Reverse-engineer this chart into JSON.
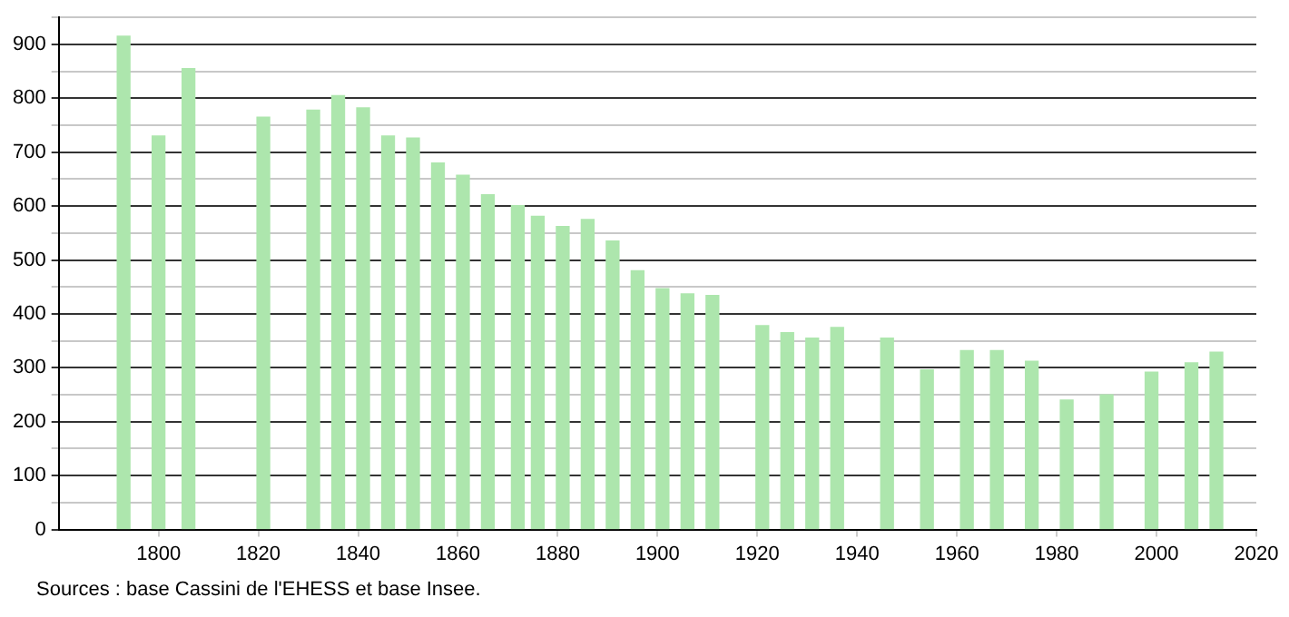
{
  "chart_data": {
    "type": "bar",
    "x": [
      1793,
      1800,
      1806,
      1821,
      1831,
      1836,
      1841,
      1846,
      1851,
      1856,
      1861,
      1866,
      1872,
      1876,
      1881,
      1886,
      1891,
      1896,
      1901,
      1906,
      1911,
      1921,
      1926,
      1931,
      1936,
      1946,
      1954,
      1962,
      1968,
      1975,
      1982,
      1990,
      1999,
      2007,
      2012
    ],
    "values": [
      915,
      730,
      855,
      765,
      778,
      805,
      782,
      730,
      726,
      680,
      657,
      621,
      601,
      581,
      562,
      575,
      535,
      480,
      447,
      437,
      434,
      378,
      365,
      355,
      375,
      355,
      296,
      332,
      332,
      312,
      240,
      250,
      292,
      309,
      329
    ],
    "color": "#ade6ad",
    "xlim": [
      1780,
      2020
    ],
    "xticks": [
      1800,
      1820,
      1840,
      1860,
      1880,
      1900,
      1920,
      1940,
      1960,
      1980,
      2000,
      2020
    ],
    "ylim": [
      0,
      950
    ],
    "yticks": [
      0,
      {
        "value": 50,
        "label": null
      },
      100,
      {
        "value": 150,
        "label": null
      },
      200,
      {
        "value": 250,
        "label": null
      },
      300,
      {
        "value": 350,
        "label": null
      },
      400,
      {
        "value": 450,
        "label": null
      },
      500,
      {
        "value": 550,
        "label": null
      },
      600,
      {
        "value": 650,
        "label": null
      },
      700,
      {
        "value": 750,
        "label": null
      },
      800,
      {
        "value": 850,
        "label": null
      },
      900,
      {
        "value": 950,
        "label": null
      }
    ],
    "grid": "y",
    "legend": false,
    "annotations": [
      "Sources : base Cassini de l'EHESS et base Insee."
    ]
  }
}
